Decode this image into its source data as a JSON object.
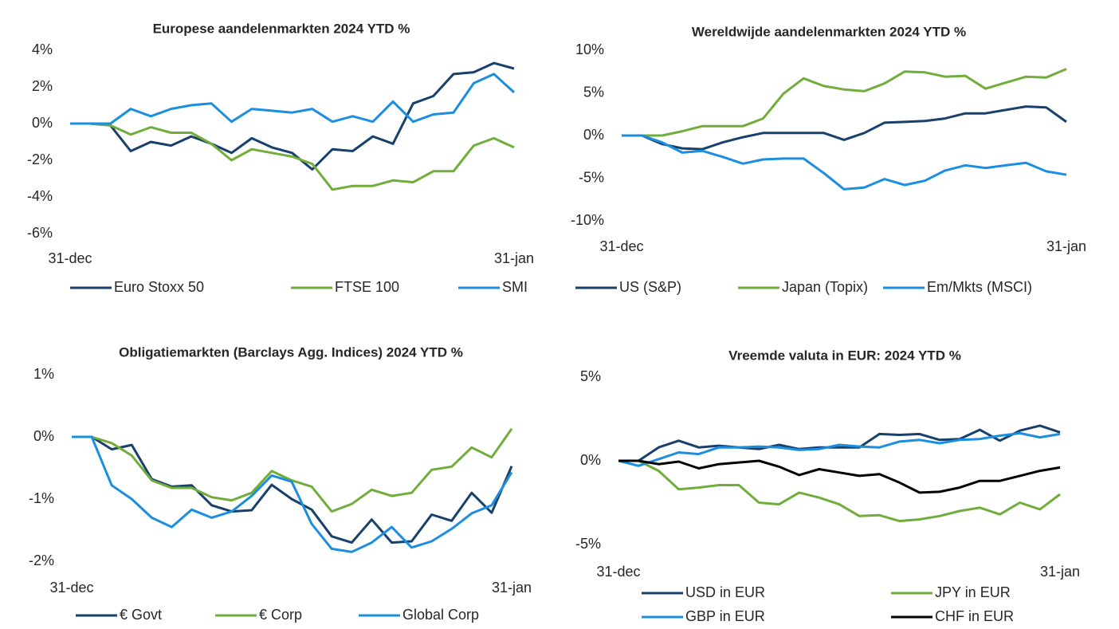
{
  "chart_data": [
    {
      "type": "line",
      "title": "Europese aandelenmarkten 2024 YTD %",
      "categories": [
        "31-dec",
        null,
        null,
        null,
        null,
        null,
        null,
        null,
        null,
        null,
        null,
        null,
        null,
        null,
        null,
        null,
        null,
        null,
        null,
        null,
        null,
        null,
        "31-jan"
      ],
      "ylim": [
        -6,
        4
      ],
      "yticks": [
        {
          "value": -6,
          "label": "-6%"
        },
        {
          "value": -4,
          "label": "-4%"
        },
        {
          "value": -2,
          "label": "-2%"
        },
        {
          "value": 0,
          "label": "0%"
        },
        {
          "value": 2,
          "label": "2%"
        },
        {
          "value": 4,
          "label": "4%"
        }
      ],
      "series": [
        {
          "name": "Euro Stoxx 50",
          "color": "#17406d",
          "values": [
            0,
            0,
            -0.1,
            -1.5,
            -1.0,
            -1.2,
            -0.7,
            -1.1,
            -1.6,
            -0.8,
            -1.3,
            -1.6,
            -2.5,
            -1.4,
            -1.5,
            -0.7,
            -1.1,
            1.1,
            1.5,
            2.7,
            2.8,
            3.3,
            3.0
          ]
        },
        {
          "name": "FTSE 100",
          "color": "#71ad3b",
          "values": [
            0,
            0,
            -0.1,
            -0.6,
            -0.2,
            -0.5,
            -0.5,
            -1.1,
            -2.0,
            -1.4,
            -1.6,
            -1.8,
            -2.2,
            -3.6,
            -3.4,
            -3.4,
            -3.1,
            -3.2,
            -2.6,
            -2.6,
            -1.2,
            -0.8,
            -1.3
          ]
        },
        {
          "name": "SMI",
          "color": "#1b8ee0",
          "values": [
            0,
            0,
            0,
            0.8,
            0.4,
            0.8,
            1.0,
            1.1,
            0.1,
            0.8,
            0.7,
            0.6,
            0.8,
            0.1,
            0.4,
            0.1,
            1.2,
            0.1,
            0.5,
            0.6,
            2.2,
            2.7,
            1.7
          ]
        }
      ]
    },
    {
      "type": "line",
      "title": "Wereldwijde aandelenmarkten 2024 YTD %",
      "categories": [
        "31-dec",
        null,
        null,
        null,
        null,
        null,
        null,
        null,
        null,
        null,
        null,
        null,
        null,
        null,
        null,
        null,
        null,
        null,
        null,
        null,
        null,
        null,
        "31-jan"
      ],
      "ylim": [
        -10,
        10
      ],
      "yticks": [
        {
          "value": -10,
          "label": "-10%"
        },
        {
          "value": -5,
          "label": "-5%"
        },
        {
          "value": 0,
          "label": "0%"
        },
        {
          "value": 5,
          "label": "5%"
        },
        {
          "value": 10,
          "label": "10%"
        }
      ],
      "series": [
        {
          "name": "US (S&P)",
          "color": "#17406d",
          "values": [
            0,
            0,
            -1.0,
            -1.5,
            -1.6,
            -0.8,
            -0.2,
            0.3,
            0.3,
            0.3,
            0.3,
            -0.5,
            0.3,
            1.5,
            1.6,
            1.7,
            2.0,
            2.6,
            2.6,
            3.0,
            3.4,
            3.3,
            1.6
          ]
        },
        {
          "name": "Japan (Topix)",
          "color": "#71ad3b",
          "values": [
            0,
            0,
            0,
            0.5,
            1.1,
            1.1,
            1.1,
            2.0,
            4.9,
            6.7,
            5.8,
            5.4,
            5.2,
            6.1,
            7.5,
            7.4,
            6.9,
            7.0,
            5.5,
            6.2,
            6.9,
            6.8,
            7.8
          ]
        },
        {
          "name": "Em/Mkts (MSCI)",
          "color": "#1b8ee0",
          "values": [
            0,
            0,
            -0.8,
            -2.0,
            -1.8,
            -2.5,
            -3.3,
            -2.8,
            -2.7,
            -2.7,
            -4.4,
            -6.3,
            -6.1,
            -5.1,
            -5.8,
            -5.3,
            -4.1,
            -3.5,
            -3.8,
            -3.5,
            -3.2,
            -4.2,
            -4.6
          ]
        }
      ]
    },
    {
      "type": "line",
      "title": "Obligatiemarkten (Barclays Agg. Indices) 2024 YTD %",
      "categories": [
        "31-dec",
        null,
        null,
        null,
        null,
        null,
        null,
        null,
        null,
        null,
        null,
        null,
        null,
        null,
        null,
        null,
        null,
        null,
        null,
        null,
        null,
        null,
        "31-jan"
      ],
      "ylim": [
        -2,
        1
      ],
      "yticks": [
        {
          "value": -2,
          "label": "-2%"
        },
        {
          "value": -1,
          "label": "-1%"
        },
        {
          "value": 0,
          "label": "0%"
        },
        {
          "value": 1,
          "label": "1%"
        }
      ],
      "series": [
        {
          "name": "€ Govt",
          "color": "#17406d",
          "values": [
            0,
            0,
            -0.2,
            -0.13,
            -0.68,
            -0.8,
            -0.78,
            -1.1,
            -1.2,
            -1.18,
            -0.77,
            -1.0,
            -1.17,
            -1.6,
            -1.7,
            -1.33,
            -1.7,
            -1.68,
            -1.25,
            -1.35,
            -0.9,
            -1.22,
            -0.47
          ]
        },
        {
          "name": "€ Corp",
          "color": "#71ad3b",
          "values": [
            0,
            0,
            -0.1,
            -0.3,
            -0.7,
            -0.82,
            -0.82,
            -0.97,
            -1.02,
            -0.9,
            -0.55,
            -0.7,
            -0.8,
            -1.2,
            -1.08,
            -0.85,
            -0.95,
            -0.9,
            -0.53,
            -0.48,
            -0.17,
            -0.33,
            0.13
          ]
        },
        {
          "name": "Global Corp",
          "color": "#1b8ee0",
          "values": [
            0,
            0,
            -0.78,
            -1.0,
            -1.3,
            -1.45,
            -1.17,
            -1.3,
            -1.2,
            -0.95,
            -0.62,
            -0.72,
            -1.4,
            -1.8,
            -1.85,
            -1.7,
            -1.45,
            -1.78,
            -1.68,
            -1.48,
            -1.23,
            -1.1,
            -0.57
          ]
        }
      ]
    },
    {
      "type": "line",
      "title": "Vreemde valuta in EUR: 2024 YTD %",
      "categories": [
        "31-dec",
        null,
        null,
        null,
        null,
        null,
        null,
        null,
        null,
        null,
        null,
        null,
        null,
        null,
        null,
        null,
        null,
        null,
        null,
        null,
        null,
        null,
        "31-jan"
      ],
      "ylim": [
        -5,
        5
      ],
      "yticks": [
        {
          "value": -5,
          "label": "-5%"
        },
        {
          "value": 0,
          "label": "0%"
        },
        {
          "value": 5,
          "label": "5%"
        }
      ],
      "series": [
        {
          "name": "USD in EUR",
          "color": "#17406d",
          "values": [
            0,
            0,
            0.8,
            1.2,
            0.8,
            0.9,
            0.8,
            0.7,
            0.95,
            0.7,
            0.8,
            0.8,
            0.8,
            1.6,
            1.55,
            1.6,
            1.25,
            1.3,
            1.85,
            1.2,
            1.8,
            2.1,
            1.7
          ]
        },
        {
          "name": "JPY in EUR",
          "color": "#71ad3b",
          "values": [
            0,
            0,
            -0.6,
            -1.7,
            -1.6,
            -1.45,
            -1.45,
            -2.5,
            -2.6,
            -1.9,
            -2.2,
            -2.6,
            -3.3,
            -3.25,
            -3.6,
            -3.5,
            -3.3,
            -3.0,
            -2.8,
            -3.2,
            -2.5,
            -2.9,
            -2.0
          ]
        },
        {
          "name": "GBP in EUR",
          "color": "#1b8ee0",
          "values": [
            0,
            -0.3,
            0.1,
            0.5,
            0.4,
            0.8,
            0.8,
            0.85,
            0.8,
            0.65,
            0.7,
            0.95,
            0.85,
            0.8,
            1.15,
            1.25,
            1.05,
            1.25,
            1.3,
            1.5,
            1.65,
            1.4,
            1.6
          ]
        },
        {
          "name": "CHF in EUR",
          "color": "#000000",
          "values": [
            0,
            0,
            -0.2,
            -0.05,
            -0.45,
            -0.2,
            -0.1,
            0,
            -0.35,
            -0.85,
            -0.5,
            -0.7,
            -0.9,
            -0.8,
            -1.3,
            -1.9,
            -1.85,
            -1.6,
            -1.2,
            -1.2,
            -0.9,
            -0.6,
            -0.4
          ]
        }
      ]
    }
  ]
}
